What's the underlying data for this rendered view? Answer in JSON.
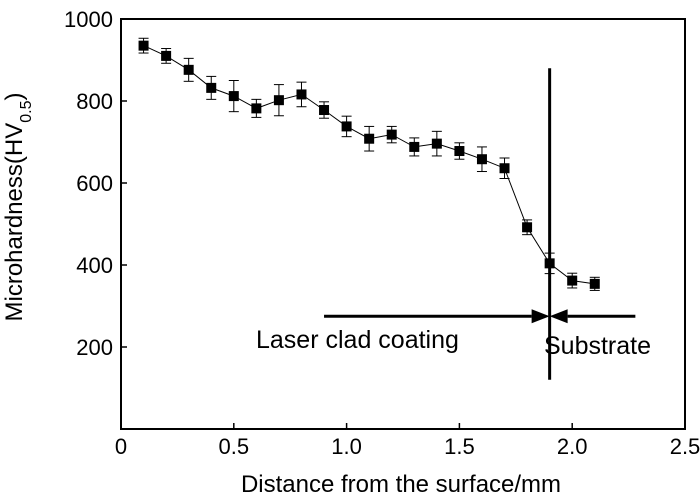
{
  "chart_data": {
    "type": "scatter",
    "xlabel": "Distance from the surface/mm",
    "ylabel": {
      "main": "Microhardness(HV",
      "sub": "0.5",
      "close": ")"
    },
    "xlim": [
      0,
      2.5
    ],
    "ylim": [
      0,
      1000
    ],
    "x_ticks": [
      0,
      0.5,
      1.0,
      1.5,
      2.0,
      2.5
    ],
    "x_tick_labels": [
      "0",
      "0.5",
      "1.0",
      "1.5",
      "2.0",
      "2.5"
    ],
    "y_ticks": [
      200,
      400,
      600,
      800,
      1000
    ],
    "y_tick_labels": [
      "200",
      "400",
      "600",
      "800",
      "1000"
    ],
    "grid": false,
    "series": [
      {
        "marker": "square",
        "line": "thin connecting line",
        "x": [
          0.1,
          0.2,
          0.3,
          0.4,
          0.5,
          0.6,
          0.7,
          0.8,
          0.9,
          1.0,
          1.1,
          1.2,
          1.3,
          1.4,
          1.5,
          1.6,
          1.7,
          1.8,
          1.9,
          2.0,
          2.1
        ],
        "y": [
          935,
          910,
          876,
          832,
          812,
          782,
          802,
          816,
          778,
          738,
          708,
          718,
          688,
          696,
          678,
          658,
          636,
          492,
          404,
          362,
          354
        ],
        "error": [
          18,
          18,
          28,
          28,
          38,
          22,
          38,
          30,
          20,
          25,
          30,
          20,
          22,
          30,
          20,
          30,
          25,
          18,
          25,
          18,
          16
        ]
      }
    ],
    "annotations": {
      "boundary_x": 1.9,
      "boundary_y_range": [
        120,
        880
      ],
      "coating_arrow": {
        "label": "Laser clad coating",
        "x_from": 0.9,
        "x_to": 1.9,
        "y": 275
      },
      "substrate_arrow": {
        "label": "Substrate",
        "x_from": 2.28,
        "x_to": 1.9,
        "y": 275
      }
    }
  }
}
